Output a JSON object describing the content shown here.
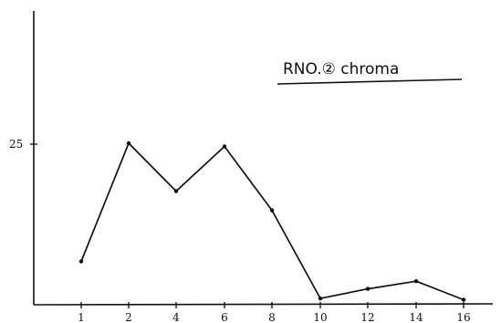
{
  "chart_data": {
    "type": "line",
    "title": "RNO.② chroma",
    "xlabel": "",
    "ylabel": "",
    "x": [
      1,
      2,
      4,
      6,
      8,
      10,
      12,
      14,
      16
    ],
    "x_tick_labels": [
      "1",
      "2",
      "4",
      "6",
      "8",
      "10",
      "12",
      "14",
      "16"
    ],
    "y_tick_values": [
      25
    ],
    "y_tick_labels": [
      "25"
    ],
    "ylim": [
      0,
      40
    ],
    "grid": false,
    "series": [
      {
        "name": "",
        "values": [
          6.5,
          25,
          17.5,
          24.5,
          14.5,
          0.7,
          2.2,
          3.4,
          0.5
        ]
      }
    ],
    "colors": {
      "line": "#111111",
      "axis": "#111111"
    }
  }
}
